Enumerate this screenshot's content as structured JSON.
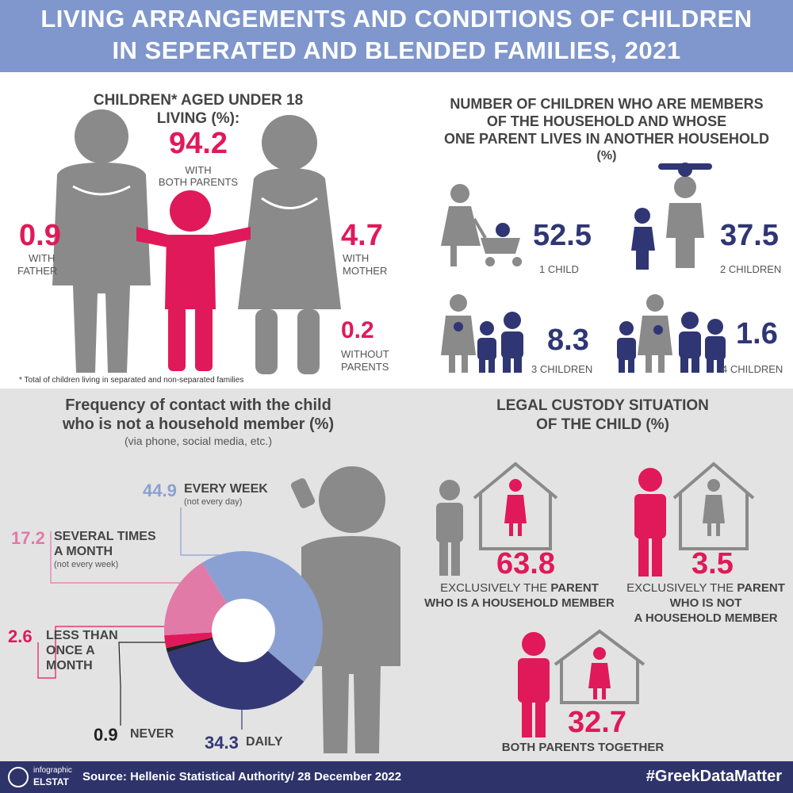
{
  "header": {
    "title_line1": "LIVING ARRANGEMENTS AND CONDITIONS OF CHILDREN",
    "title_line2": "IN SEPERATED AND BLENDED FAMILIES, 2021"
  },
  "living": {
    "title_line1": "CHILDREN* AGED UNDER 18",
    "title_line2": "LIVING (%):",
    "both_value": "94.2",
    "both_label_1": "WITH",
    "both_label_2": "BOTH PARENTS",
    "father_value": "0.9",
    "father_label_1": "WITH",
    "father_label_2": "FATHER",
    "mother_value": "4.7",
    "mother_label_1": "WITH",
    "mother_label_2": "MOTHER",
    "without_value": "0.2",
    "without_label_1": "WITHOUT",
    "without_label_2": "PARENTS",
    "footnote": "* Total of children living in separated and non-separated families"
  },
  "household": {
    "title_line1": "NUMBER OF CHILDREN WHO ARE MEMBERS",
    "title_line2": "OF THE HOUSEHOLD AND WHOSE",
    "title_line3": "ONE PARENT LIVES IN ANOTHER HOUSEHOLD",
    "title_line4": "(%)",
    "items": [
      {
        "value": "52.5",
        "label": "1 CHILD"
      },
      {
        "value": "37.5",
        "label": "2 CHILDREN"
      },
      {
        "value": "8.3",
        "label": "3 CHILDREN"
      },
      {
        "value": "1.6",
        "label": "4 CHILDREN"
      }
    ]
  },
  "contact": {
    "title_line1": "Frequency of contact with the child",
    "title_line2": "who is not a household member (%)",
    "subtitle": "(via phone, social media, etc.)",
    "every_week": {
      "value": "44.9",
      "label": "EVERY WEEK",
      "note": "(not every day)"
    },
    "several": {
      "value": "17.2",
      "label_1": "SEVERAL TIMES",
      "label_2": "A MONTH",
      "note": "(not every week)"
    },
    "less": {
      "value": "2.6",
      "label_1": "LESS THAN",
      "label_2": "ONCE A",
      "label_3": "MONTH"
    },
    "never": {
      "value": "0.9",
      "label": "NEVER"
    },
    "daily": {
      "value": "34.3",
      "label": "DAILY"
    }
  },
  "custody": {
    "title_line1": "LEGAL CUSTODY SITUATION",
    "title_line2": "OF THE CHILD (%)",
    "member": {
      "value": "63.8",
      "l1a": "EXCLUSIVELY THE ",
      "l1b": "PARENT",
      "l2": "WHO IS A HOUSEHOLD MEMBER"
    },
    "notmember": {
      "value": "3.5",
      "l1a": "EXCLUSIVELY THE ",
      "l1b": "PARENT",
      "l2": "WHO IS NOT",
      "l3": "A HOUSEHOLD MEMBER"
    },
    "both": {
      "value": "32.7",
      "label": "BOTH PARENTS TOGETHER"
    }
  },
  "footer": {
    "logo_top": "infographic",
    "logo_bottom": "ELSTAT",
    "source": "Source: Hellenic Statistical Authority/ 28 December 2022",
    "hashtag": "#GreekDataMatter"
  },
  "colors": {
    "pink": "#e0195a",
    "navy": "#2f3673",
    "gray": "#8a8a8a",
    "light_blue": "#8aa0d2",
    "light_pink": "#e27aa8",
    "header": "#7f97cc"
  },
  "chart_data": {
    "type": "pie",
    "title": "Frequency of contact with the child who is not a household member (%)",
    "subtitle": "(via phone, social media, etc.)",
    "series": [
      {
        "name": "EVERY WEEK",
        "value": 44.9,
        "color": "#8aa0d2"
      },
      {
        "name": "DAILY",
        "value": 34.3,
        "color": "#343876"
      },
      {
        "name": "NEVER",
        "value": 0.9,
        "color": "#222222"
      },
      {
        "name": "LESS THAN ONCE A MONTH",
        "value": 2.6,
        "color": "#e0195a"
      },
      {
        "name": "SEVERAL TIMES A MONTH",
        "value": 17.2,
        "color": "#e27aa8"
      }
    ]
  }
}
